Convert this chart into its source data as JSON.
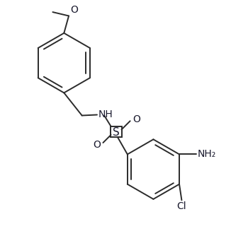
{
  "bg_color": "#ffffff",
  "line_color": "#2b2b2b",
  "text_color": "#1a1a2e",
  "bond_width": 1.4,
  "font_size": 10,
  "figsize": [
    3.26,
    3.27
  ],
  "dpi": 100,
  "xlim": [
    0.0,
    1.0
  ],
  "ylim": [
    0.0,
    1.0
  ]
}
